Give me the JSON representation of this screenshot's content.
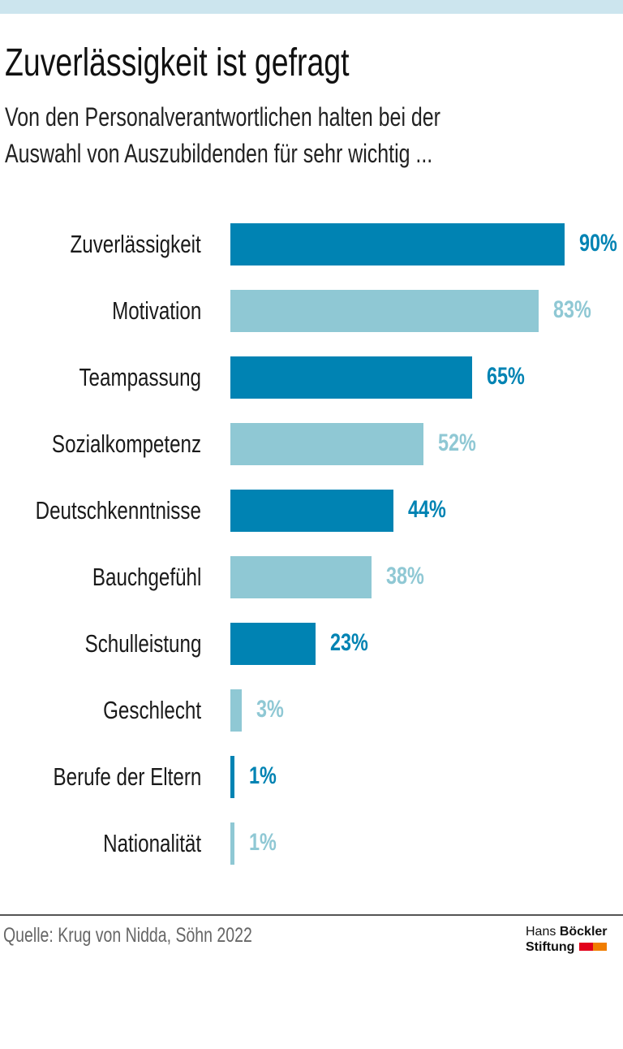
{
  "header": {
    "title": "Zuverlässigkeit ist gefragt",
    "subtitle_line1": "Von den Personalverantwortlichen halten bei der",
    "subtitle_line2": "Auswahl von Auszubildenden für sehr wichtig ..."
  },
  "chart_data": {
    "type": "bar",
    "orientation": "horizontal",
    "title": "Zuverlässigkeit ist gefragt",
    "categories": [
      "Zuverlässigkeit",
      "Motivation",
      "Teampassung",
      "Sozialkompetenz",
      "Deutschkenntnisse",
      "Bauchgefühl",
      "Schulleistung",
      "Geschlecht",
      "Berufe der Eltern",
      "Nationalität"
    ],
    "values": [
      90,
      83,
      65,
      52,
      44,
      38,
      23,
      3,
      1,
      1
    ],
    "value_labels": [
      "90%",
      "83%",
      "65%",
      "52%",
      "44%",
      "38%",
      "23%",
      "3%",
      "1%",
      "1%"
    ],
    "unit": "%",
    "xlim": [
      0,
      100
    ],
    "grid": false,
    "colors": [
      "#0083b3",
      "#8fc8d4"
    ]
  },
  "footer": {
    "source": "Quelle: Krug von Nidda, Söhn 2022",
    "logo_line1_a": "Hans",
    "logo_line1_b": "Böckler",
    "logo_line2": "Stiftung"
  },
  "colors": {
    "topbar": "#cce5ee",
    "dark": "#0083b3",
    "light": "#8fc8d4",
    "logo_red": "#e2001a",
    "logo_orange": "#f07d00"
  }
}
